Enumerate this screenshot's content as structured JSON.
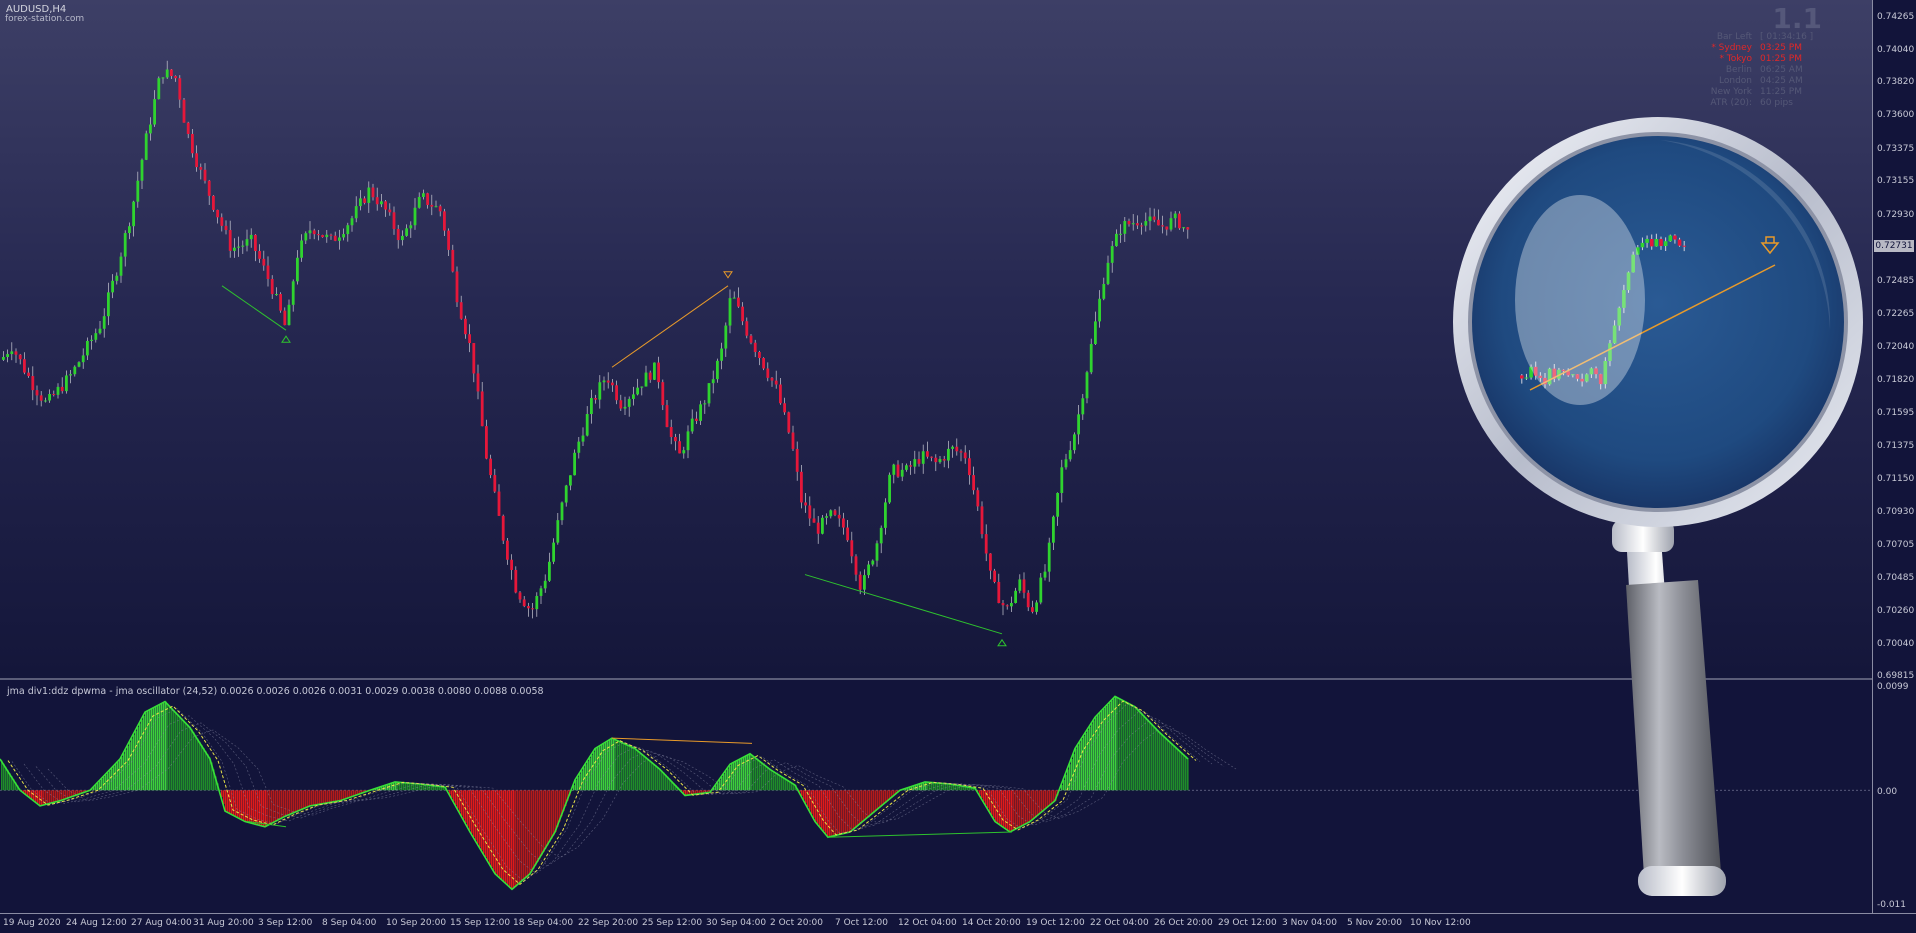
{
  "chart": {
    "symbol": "AUDUSD,H4",
    "watermark": "forex-station.com",
    "indicator_title": "jma div1:ddz dpwma - jma oscillator (24,52) 0.0026 0.0026 0.0026 0.0031 0.0029 0.0038 0.0080 0.0088 0.0058",
    "current_price": "0.72731",
    "big_value": "1.1"
  },
  "info_panel": [
    {
      "k": "Bar Left",
      "v": "[ 01:34:16 ]",
      "style": "grey"
    },
    {
      "k": "* Sydney",
      "v": "03:25 PM",
      "style": "red"
    },
    {
      "k": "* Tokyo",
      "v": "01:25 PM",
      "style": "red"
    },
    {
      "k": "Berlin",
      "v": "06:25 AM",
      "style": "grey"
    },
    {
      "k": "London",
      "v": "04:25 AM",
      "style": "grey"
    },
    {
      "k": "New York",
      "v": "11:25 PM",
      "style": "grey"
    },
    {
      "k": "ATR (20):",
      "v": "60 pips",
      "style": "grey"
    }
  ],
  "price_axis": [
    "0.74265",
    "0.74040",
    "0.73820",
    "0.73600",
    "0.73375",
    "0.73155",
    "0.72930",
    "0.72485",
    "0.72265",
    "0.72040",
    "0.71820",
    "0.71595",
    "0.71375",
    "0.71150",
    "0.70930",
    "0.70705",
    "0.70485",
    "0.70260",
    "0.70040",
    "0.69815"
  ],
  "indicator_axis": [
    "0.0099",
    "0.00",
    "-0.011"
  ],
  "time_axis": [
    "19 Aug 2020",
    "24 Aug 12:00",
    "27 Aug 04:00",
    "31 Aug 20:00",
    "3 Sep 12:00",
    "8 Sep 04:00",
    "10 Sep 20:00",
    "15 Sep 12:00",
    "18 Sep 04:00",
    "22 Sep 20:00",
    "25 Sep 12:00",
    "30 Sep 04:00",
    "2 Oct 20:00",
    "7 Oct 12:00",
    "12 Oct 04:00",
    "14 Oct 20:00",
    "19 Oct 12:00",
    "22 Oct 04:00",
    "26 Oct 20:00",
    "29 Oct 12:00",
    "3 Nov 04:00",
    "5 Nov 20:00",
    "10 Nov 12:00"
  ],
  "chart_data": {
    "type": "candlestick",
    "price_path": [
      [
        0,
        0.7195
      ],
      [
        10,
        0.7205
      ],
      [
        30,
        0.718
      ],
      [
        45,
        0.7165
      ],
      [
        70,
        0.7185
      ],
      [
        100,
        0.722
      ],
      [
        115,
        0.7255
      ],
      [
        130,
        0.7295
      ],
      [
        145,
        0.7345
      ],
      [
        160,
        0.739
      ],
      [
        175,
        0.7385
      ],
      [
        185,
        0.735
      ],
      [
        200,
        0.732
      ],
      [
        215,
        0.7295
      ],
      [
        230,
        0.727
      ],
      [
        250,
        0.7275
      ],
      [
        270,
        0.7245
      ],
      [
        285,
        0.7215
      ],
      [
        295,
        0.7265
      ],
      [
        310,
        0.7285
      ],
      [
        330,
        0.7275
      ],
      [
        350,
        0.729
      ],
      [
        368,
        0.731
      ],
      [
        385,
        0.7295
      ],
      [
        400,
        0.7275
      ],
      [
        420,
        0.7305
      ],
      [
        440,
        0.7295
      ],
      [
        455,
        0.724
      ],
      [
        470,
        0.72
      ],
      [
        485,
        0.713
      ],
      [
        500,
        0.708
      ],
      [
        515,
        0.704
      ],
      [
        530,
        0.7025
      ],
      [
        545,
        0.705
      ],
      [
        560,
        0.7095
      ],
      [
        575,
        0.7135
      ],
      [
        590,
        0.7165
      ],
      [
        605,
        0.7185
      ],
      [
        620,
        0.7165
      ],
      [
        640,
        0.718
      ],
      [
        655,
        0.719
      ],
      [
        668,
        0.7145
      ],
      [
        678,
        0.713
      ],
      [
        690,
        0.715
      ],
      [
        705,
        0.717
      ],
      [
        720,
        0.72
      ],
      [
        730,
        0.724
      ],
      [
        745,
        0.7215
      ],
      [
        760,
        0.7195
      ],
      [
        775,
        0.7175
      ],
      [
        790,
        0.714
      ],
      [
        800,
        0.71
      ],
      [
        815,
        0.708
      ],
      [
        830,
        0.709
      ],
      [
        845,
        0.708
      ],
      [
        860,
        0.704
      ],
      [
        875,
        0.707
      ],
      [
        890,
        0.712
      ],
      [
        905,
        0.712
      ],
      [
        920,
        0.713
      ],
      [
        935,
        0.7125
      ],
      [
        950,
        0.7135
      ],
      [
        965,
        0.713
      ],
      [
        978,
        0.709
      ],
      [
        990,
        0.7045
      ],
      [
        1005,
        0.7025
      ],
      [
        1018,
        0.7045
      ],
      [
        1030,
        0.7025
      ],
      [
        1045,
        0.7055
      ],
      [
        1060,
        0.712
      ],
      [
        1075,
        0.715
      ],
      [
        1090,
        0.7205
      ],
      [
        1105,
        0.726
      ],
      [
        1120,
        0.7285
      ],
      [
        1140,
        0.729
      ],
      [
        1160,
        0.7285
      ],
      [
        1175,
        0.729
      ],
      [
        1188,
        0.728
      ]
    ],
    "divergence_lines": [
      {
        "from": [
          222,
          0.7245
        ],
        "to": [
          286,
          0.7215
        ],
        "color": "#2ec22e"
      },
      {
        "from": [
          612,
          0.719
        ],
        "to": [
          728,
          0.7245
        ],
        "color": "#e89a2a"
      },
      {
        "from": [
          805,
          0.705
        ],
        "to": [
          1002,
          0.701
        ],
        "color": "#2ec22e"
      }
    ],
    "oscillator_series": [
      [
        0,
        0.003
      ],
      [
        20,
        0.0
      ],
      [
        40,
        -0.0015
      ],
      [
        60,
        -0.001
      ],
      [
        90,
        0.0
      ],
      [
        120,
        0.003
      ],
      [
        145,
        0.0075
      ],
      [
        165,
        0.0085
      ],
      [
        190,
        0.006
      ],
      [
        210,
        0.003
      ],
      [
        225,
        -0.002
      ],
      [
        245,
        -0.003
      ],
      [
        265,
        -0.0035
      ],
      [
        285,
        -0.0025
      ],
      [
        310,
        -0.0015
      ],
      [
        340,
        -0.001
      ],
      [
        370,
        0.0
      ],
      [
        395,
        0.0008
      ],
      [
        420,
        0.0006
      ],
      [
        445,
        0.0003
      ],
      [
        470,
        -0.004
      ],
      [
        495,
        -0.008
      ],
      [
        512,
        -0.0095
      ],
      [
        530,
        -0.008
      ],
      [
        555,
        -0.004
      ],
      [
        575,
        0.001
      ],
      [
        595,
        0.004
      ],
      [
        612,
        0.005
      ],
      [
        635,
        0.004
      ],
      [
        660,
        0.002
      ],
      [
        685,
        -0.0005
      ],
      [
        710,
        -0.0002
      ],
      [
        730,
        0.0025
      ],
      [
        750,
        0.0035
      ],
      [
        770,
        0.002
      ],
      [
        795,
        0.0005
      ],
      [
        815,
        -0.003
      ],
      [
        828,
        -0.0045
      ],
      [
        850,
        -0.004
      ],
      [
        875,
        -0.002
      ],
      [
        900,
        0.0
      ],
      [
        925,
        0.0008
      ],
      [
        950,
        0.0006
      ],
      [
        975,
        0.0002
      ],
      [
        995,
        -0.003
      ],
      [
        1010,
        -0.004
      ],
      [
        1030,
        -0.003
      ],
      [
        1055,
        -0.001
      ],
      [
        1075,
        0.004
      ],
      [
        1095,
        0.007
      ],
      [
        1115,
        0.009
      ],
      [
        1135,
        0.008
      ],
      [
        1160,
        0.0055
      ],
      [
        1188,
        0.003
      ]
    ]
  }
}
